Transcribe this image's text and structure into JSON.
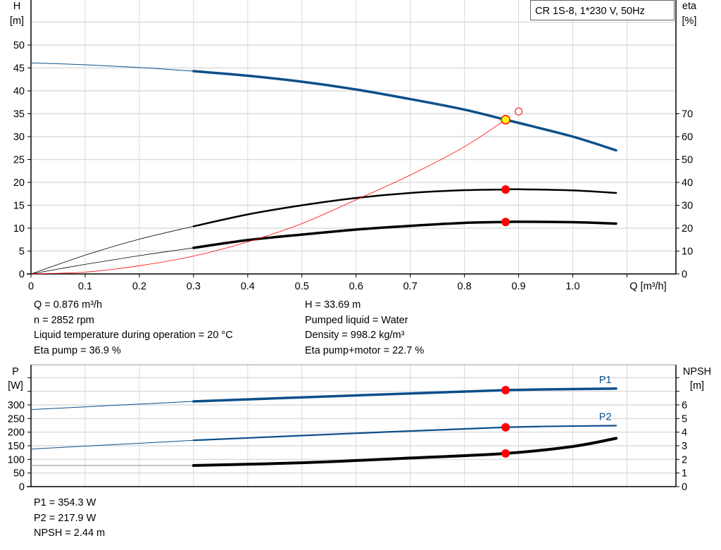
{
  "chart_data": [
    {
      "type": "line",
      "title": "CR 1S-8, 1*230 V, 50Hz",
      "xlabel": "Q [m³/h]",
      "ylabel_left": [
        "H",
        "[m]"
      ],
      "ylabel_right": [
        "eta",
        "[%]"
      ],
      "xlim": [
        0,
        1.1
      ],
      "ylim_left": [
        0,
        60
      ],
      "ylim_right": [
        0,
        120
      ],
      "x_ticks": [
        "0",
        "0.1",
        "0.2",
        "0.3",
        "0.4",
        "0.5",
        "0.6",
        "0.7",
        "0.8",
        "0.9",
        "1.0"
      ],
      "y_ticks_left": [
        "0",
        "5",
        "10",
        "15",
        "20",
        "25",
        "30",
        "35",
        "40",
        "45",
        "50"
      ],
      "y_ticks_right": [
        "0",
        "10",
        "20",
        "30",
        "40",
        "50",
        "60",
        "70"
      ],
      "grid": true,
      "legend": "top-right",
      "series": [
        {
          "key": "H",
          "axis": "left",
          "color": "#0b4f8a",
          "x": [
            0,
            0.1,
            0.2,
            0.3,
            0.4,
            0.5,
            0.6,
            0.7,
            0.8,
            0.876,
            0.9,
            1.0,
            1.08
          ],
          "values": [
            46.1,
            45.7,
            45.1,
            44.3,
            43.3,
            42.0,
            40.3,
            38.2,
            35.9,
            33.69,
            33.0,
            30.0,
            27.0
          ]
        },
        {
          "key": "eta_pump",
          "axis": "right",
          "color": "#000000",
          "x": [
            0,
            0.1,
            0.2,
            0.3,
            0.4,
            0.5,
            0.6,
            0.7,
            0.8,
            0.876,
            0.9,
            1.0,
            1.08
          ],
          "values": [
            0,
            8.2,
            15.2,
            20.8,
            26.0,
            30.0,
            33.2,
            35.4,
            36.6,
            36.9,
            37.0,
            36.5,
            35.4
          ]
        },
        {
          "key": "eta_pump_motor",
          "axis": "right",
          "color": "#000000",
          "x": [
            0,
            0.1,
            0.2,
            0.3,
            0.4,
            0.5,
            0.6,
            0.7,
            0.8,
            0.876,
            0.9,
            1.0,
            1.08
          ],
          "values": [
            0,
            4.2,
            8.0,
            11.4,
            14.8,
            17.2,
            19.4,
            21.0,
            22.3,
            22.7,
            22.8,
            22.6,
            22.0
          ]
        },
        {
          "key": "system_curve",
          "axis": "left",
          "color": "#ff0000",
          "x": [
            0,
            0.1,
            0.2,
            0.3,
            0.4,
            0.5,
            0.6,
            0.7,
            0.8,
            0.876
          ],
          "values": [
            0,
            0.4,
            1.8,
            3.9,
            7.0,
            11.0,
            16.2,
            21.6,
            27.8,
            33.69
          ]
        }
      ],
      "operating_point": {
        "q": 0.876,
        "h": 33.69,
        "eta_pump": 36.9,
        "eta_pump_motor": 22.7
      },
      "setpoint": {
        "q": 0.9,
        "h": 35.5
      }
    },
    {
      "type": "line",
      "ylabel_left": [
        "P",
        "[W]"
      ],
      "ylabel_right": [
        "NPSH",
        "[m]"
      ],
      "xlim": [
        0,
        1.1
      ],
      "ylim_left": [
        0,
        450
      ],
      "ylim_right": [
        0,
        9
      ],
      "y_ticks_left": [
        "0",
        "50",
        "100",
        "150",
        "200",
        "250",
        "300"
      ],
      "y_ticks_right": [
        "0",
        "1",
        "2",
        "3",
        "4",
        "5",
        "6"
      ],
      "grid": true,
      "series": [
        {
          "key": "P1",
          "name": "P1",
          "axis": "left",
          "color": "#0b4f8a",
          "x": [
            0,
            0.3,
            0.6,
            0.876,
            1.08
          ],
          "values": [
            283,
            313,
            335,
            354.3,
            360
          ]
        },
        {
          "key": "P2",
          "name": "P2",
          "axis": "left",
          "color": "#0b4f8a",
          "x": [
            0,
            0.3,
            0.6,
            0.876,
            1.08
          ],
          "values": [
            138,
            170,
            196,
            217.9,
            224
          ]
        },
        {
          "key": "NPSH",
          "axis": "right",
          "color": "#000000",
          "x": [
            0,
            0.3,
            0.5,
            0.7,
            0.876,
            1.0,
            1.08
          ],
          "values": [
            1.55,
            1.55,
            1.75,
            2.1,
            2.44,
            2.95,
            3.55
          ]
        }
      ]
    }
  ],
  "results_top": {
    "left": [
      "Q = 0.876 m³/h",
      "n = 2852 rpm",
      "Liquid temperature during operation = 20 °C",
      "Eta pump = 36.9 %"
    ],
    "right": [
      "H = 33.69 m",
      "Pumped liquid = Water",
      "Density = 998.2 kg/m³",
      "Eta pump+motor = 22.7 %"
    ]
  },
  "results_bottom": [
    "P1 = 354.3 W",
    "P2 = 217.9 W",
    "NPSH = 2.44 m"
  ]
}
